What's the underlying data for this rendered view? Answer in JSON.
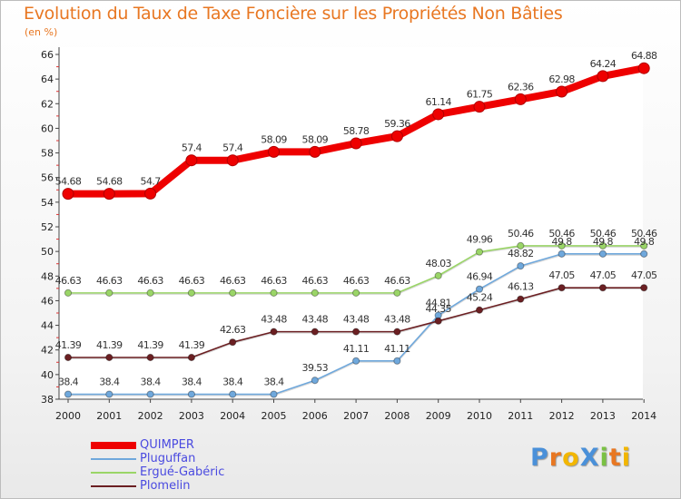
{
  "title": "Evolution du Taux de Taxe Foncière sur les Propriétés Non Bâties",
  "subtitle": "(en %)",
  "logo": "ProXiti",
  "chart_data": {
    "type": "line",
    "title": "Evolution du Taux de Taxe Foncière sur les Propriétés Non Bâties",
    "subtitle": "(en %)",
    "xlabel": "",
    "ylabel": "",
    "ylim": [
      38,
      66
    ],
    "yticks": [
      38,
      40,
      42,
      44,
      46,
      48,
      50,
      52,
      54,
      56,
      58,
      60,
      62,
      64,
      66
    ],
    "x": [
      "2000",
      "2001",
      "2002",
      "2003",
      "2004",
      "2005",
      "2006",
      "2007",
      "2008",
      "2009",
      "2010",
      "2011",
      "2012",
      "2013",
      "2014"
    ],
    "legend_position": "bottom-left",
    "grid": false,
    "series": [
      {
        "name": "QUIMPER",
        "color": "#ee0000",
        "values": [
          54.68,
          54.68,
          54.7,
          57.4,
          57.4,
          58.09,
          58.09,
          58.78,
          59.36,
          61.14,
          61.75,
          62.36,
          62.98,
          64.24,
          64.88
        ],
        "labels": [
          "54.68",
          "54.68",
          "54.7",
          "57.4",
          "57.4",
          "58.09",
          "58.09",
          "58.78",
          "59.36",
          "61.14",
          "61.75",
          "62.36",
          "62.98",
          "64.24",
          "64.88"
        ]
      },
      {
        "name": "Pluguffan",
        "color": "#6fa8dc",
        "values": [
          38.4,
          38.4,
          38.4,
          38.4,
          38.4,
          38.4,
          39.53,
          41.11,
          41.11,
          44.81,
          46.94,
          48.82,
          49.8,
          49.8,
          49.8
        ],
        "labels": [
          "38.4",
          "38.4",
          "38.4",
          "38.4",
          "38.4",
          "38.4",
          "39.53",
          "41.11",
          "41.11",
          "44.81",
          "46.94",
          "48.82",
          "49.8",
          "49.8",
          "49.8"
        ]
      },
      {
        "name": "Ergué-Gabéric",
        "color": "#9ad567",
        "values": [
          46.63,
          46.63,
          46.63,
          46.63,
          46.63,
          46.63,
          46.63,
          46.63,
          46.63,
          48.03,
          49.96,
          50.46,
          50.46,
          50.46,
          50.46
        ],
        "labels": [
          "46.63",
          "46.63",
          "46.63",
          "46.63",
          "46.63",
          "46.63",
          "46.63",
          "46.63",
          "46.63",
          "48.03",
          "49.96",
          "50.46",
          "50.46",
          "50.46",
          "50.46"
        ]
      },
      {
        "name": "Plomelin",
        "color": "#6b1f22",
        "values": [
          41.39,
          41.39,
          41.39,
          41.39,
          42.63,
          43.48,
          43.48,
          43.48,
          43.48,
          44.35,
          45.24,
          46.13,
          47.05,
          47.05,
          47.05
        ],
        "labels": [
          "41.39",
          "41.39",
          "41.39",
          "41.39",
          "42.63",
          "43.48",
          "43.48",
          "43.48",
          "43.48",
          "44.35",
          "45.24",
          "46.13",
          "47.05",
          "47.05",
          "47.05"
        ]
      }
    ]
  }
}
